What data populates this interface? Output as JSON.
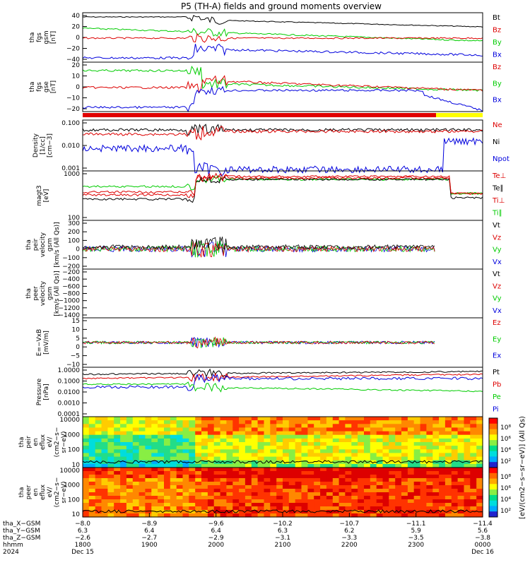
{
  "title": "P5 (TH-A) fields and ground moments overview",
  "colors": {
    "black": "#000000",
    "red": "#dd0000",
    "green": "#00cc00",
    "blue": "#0000dd",
    "yellow": "#ffff00"
  },
  "panels": [
    {
      "id": "fgs1",
      "ylabel_lines": [
        "tha",
        "fgs",
        "gsm",
        "[nT]"
      ],
      "ticks": [
        "40",
        "20",
        "0",
        "−20",
        "−40"
      ],
      "legend": [
        {
          "t": "Bt",
          "c": "black"
        },
        {
          "t": "Bz",
          "c": "red"
        },
        {
          "t": "By",
          "c": "green"
        },
        {
          "t": "Bx",
          "c": "blue"
        }
      ]
    },
    {
      "id": "fgs2",
      "ylabel_lines": [
        "tha",
        "fgs",
        "gse",
        "[nT]"
      ],
      "ticks": [
        "20",
        "10",
        "0",
        "−10",
        "−20"
      ],
      "legend": [
        {
          "t": "Bz",
          "c": "red"
        },
        {
          "t": "By",
          "c": "green"
        },
        {
          "t": "Bx",
          "c": "blue"
        }
      ]
    },
    {
      "id": "dens",
      "ylabel_lines": [
        "Density",
        "[1/cc]",
        "[cm−3]"
      ],
      "ticks": [
        "0.100",
        "0.010",
        "0.001"
      ],
      "legend": [
        {
          "t": "Ne",
          "c": "red"
        },
        {
          "t": "Ni",
          "c": "black"
        },
        {
          "t": "Npot",
          "c": "blue"
        }
      ]
    },
    {
      "id": "temp",
      "ylabel_lines": [
        "magt3",
        "[eV]"
      ],
      "ticks": [
        "1000",
        "100"
      ],
      "legend": [
        {
          "t": "Te⊥",
          "c": "red"
        },
        {
          "t": "Te∥",
          "c": "black"
        },
        {
          "t": "Ti⊥",
          "c": "red"
        },
        {
          "t": "Ti∥",
          "c": "green"
        }
      ]
    },
    {
      "id": "vi",
      "ylabel_lines": [
        "tha",
        "peir",
        "velocity",
        "gsm",
        "[km/s (All Qs)]"
      ],
      "ticks": [
        "300",
        "200",
        "100",
        "0",
        "−100",
        "−200"
      ],
      "legend": [
        {
          "t": "Vt",
          "c": "black"
        },
        {
          "t": "Vz",
          "c": "red"
        },
        {
          "t": "Vy",
          "c": "green"
        },
        {
          "t": "Vx",
          "c": "blue"
        }
      ]
    },
    {
      "id": "ve",
      "ylabel_lines": [
        "tha",
        "peer",
        "velocity",
        "gsm",
        "[km/s (All Qs)]"
      ],
      "ticks": [
        "−200",
        "−400",
        "−600",
        "−800",
        "−1000",
        "−1200",
        "−1400"
      ],
      "legend": [
        {
          "t": "Vt",
          "c": "black"
        },
        {
          "t": "Vz",
          "c": "red"
        },
        {
          "t": "Vy",
          "c": "green"
        },
        {
          "t": "Vx",
          "c": "blue"
        }
      ]
    },
    {
      "id": "efield",
      "ylabel_lines": [
        "E=−VxB",
        "[mV/m]"
      ],
      "ticks": [
        "15",
        "10",
        "5",
        "0",
        "−5",
        "−10"
      ],
      "legend": [
        {
          "t": "Ez",
          "c": "red"
        },
        {
          "t": "Ey",
          "c": "green"
        },
        {
          "t": "Ex",
          "c": "blue"
        }
      ]
    },
    {
      "id": "press",
      "ylabel_lines": [
        "Pressure",
        "[nPa]"
      ],
      "ticks": [
        "1.0000",
        "0.1000",
        "0.0100",
        "0.0010",
        "0.0001"
      ],
      "legend": [
        {
          "t": "Pt",
          "c": "black"
        },
        {
          "t": "Pb",
          "c": "red"
        },
        {
          "t": "Pe",
          "c": "green"
        },
        {
          "t": "Pi",
          "c": "blue"
        }
      ]
    },
    {
      "id": "ispec",
      "ylabel_lines": [
        "tha",
        "peir",
        "en",
        "eflux",
        "eV/",
        "(cm2−s−",
        "sr−eV)"
      ],
      "ticks": [
        "10000",
        "1000",
        "100",
        "10"
      ],
      "legend": []
    },
    {
      "id": "espec",
      "ylabel_lines": [
        "tha",
        "peer",
        "en",
        "eflux",
        "eV/",
        "(cm2−s−",
        "sr−eV)"
      ],
      "ticks": [
        "10000",
        "1000",
        "100",
        "10"
      ],
      "legend": []
    }
  ],
  "colorbar": {
    "label": "[eV/(cm2−s−sr−eV)] (All Qs)",
    "upper_ticks": [
      "10⁸",
      "10⁶",
      "10⁴",
      "10²"
    ],
    "lower_ticks": [
      "10⁸",
      "10⁶",
      "10⁴",
      "10²"
    ]
  },
  "xaxis": {
    "row_labels": [
      "tha_X−GSM",
      "tha_Y−GSM",
      "tha_Z−GSM",
      "hhmm",
      "2024"
    ],
    "columns": [
      {
        "x": "−8.0",
        "y": "6.3",
        "z": "−2.6",
        "hhmm": "1800",
        "date": "Dec 15"
      },
      {
        "x": "−8.9",
        "y": "6.4",
        "z": "−2.7",
        "hhmm": "1900",
        "date": ""
      },
      {
        "x": "−9.6",
        "y": "6.4",
        "z": "−2.9",
        "hhmm": "2000",
        "date": ""
      },
      {
        "x": "−10.2",
        "y": "6.3",
        "z": "−3.1",
        "hhmm": "2100",
        "date": ""
      },
      {
        "x": "−10.7",
        "y": "6.2",
        "z": "−3.3",
        "hhmm": "2200",
        "date": ""
      },
      {
        "x": "−11.1",
        "y": "5.9",
        "z": "−3.5",
        "hhmm": "2300",
        "date": ""
      },
      {
        "x": "−11.4",
        "y": "5.6",
        "z": "−3.8",
        "hhmm": "0000",
        "date": "Dec 16"
      }
    ]
  },
  "chart_data": {
    "type": "line",
    "title": "P5 (TH-A) fields and ground moments overview",
    "x_time": [
      "1800",
      "1900",
      "2000",
      "2100",
      "2200",
      "2300",
      "0000"
    ],
    "series_approx": {
      "fgs_gsm_Bt": [
        47,
        47,
        50,
        38,
        30,
        28,
        34
      ],
      "fgs_gsm_By": [
        22,
        20,
        16,
        12,
        10,
        8,
        6
      ],
      "fgs_gsm_Bz": [
        2,
        2,
        8,
        6,
        2,
        2,
        8
      ],
      "fgs_gsm_Bx": [
        -38,
        -38,
        -22,
        -18,
        -25,
        -30,
        -38
      ],
      "density_Ni": [
        0.2,
        0.15,
        0.3,
        0.3,
        0.3,
        0.3,
        0.4
      ],
      "temperature_Ti_eV": [
        600,
        700,
        4000,
        5000,
        5000,
        4000,
        500
      ]
    }
  }
}
